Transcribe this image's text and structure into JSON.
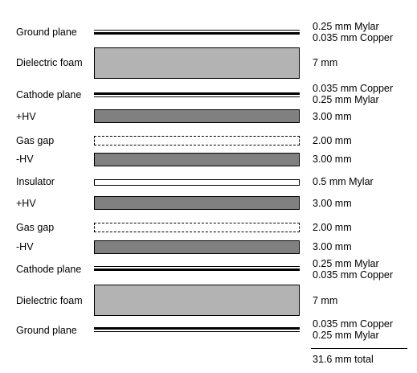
{
  "layers": [
    {
      "label": "Ground plane",
      "style": "thin-pair cu-bottom",
      "thickness": [
        "0.25 mm Mylar",
        "0.035 mm Copper"
      ]
    },
    {
      "label": "Dielectric foam",
      "style": "foam",
      "thickness": [
        "7 mm"
      ]
    },
    {
      "label": "Cathode plane",
      "style": "thin-pair cu-top",
      "thickness": [
        "0.035 mm Copper",
        "0.25 mm Mylar"
      ]
    },
    {
      "label": "+HV",
      "style": "hv",
      "thickness": [
        "3.00 mm"
      ]
    },
    {
      "label": "Gas gap",
      "style": "gas",
      "thickness": [
        "2.00 mm"
      ]
    },
    {
      "label": "-HV",
      "style": "hv",
      "thickness": [
        "3.00 mm"
      ]
    },
    {
      "label": "Insulator",
      "style": "insulator",
      "thickness": [
        "0.5 mm Mylar"
      ]
    },
    {
      "label": "+HV",
      "style": "hv",
      "thickness": [
        "3.00 mm"
      ]
    },
    {
      "label": "Gas gap",
      "style": "gas",
      "thickness": [
        "2.00 mm"
      ]
    },
    {
      "label": "-HV",
      "style": "hv",
      "thickness": [
        "3.00 mm"
      ]
    },
    {
      "label": "Cathode plane",
      "style": "thin-pair cu-bottom",
      "thickness": [
        "0.25 mm Mylar",
        "0.035 mm Copper"
      ]
    },
    {
      "label": "Dielectric foam",
      "style": "foam",
      "thickness": [
        "7 mm"
      ]
    },
    {
      "label": "Ground plane",
      "style": "thin-pair cu-top",
      "thickness": [
        "0.035 mm Copper",
        "0.25 mm Mylar"
      ]
    }
  ],
  "total": "31.6 mm total",
  "colors": {
    "foam": "#b3b3b3",
    "hv": "#808080",
    "outline": "#000000"
  }
}
